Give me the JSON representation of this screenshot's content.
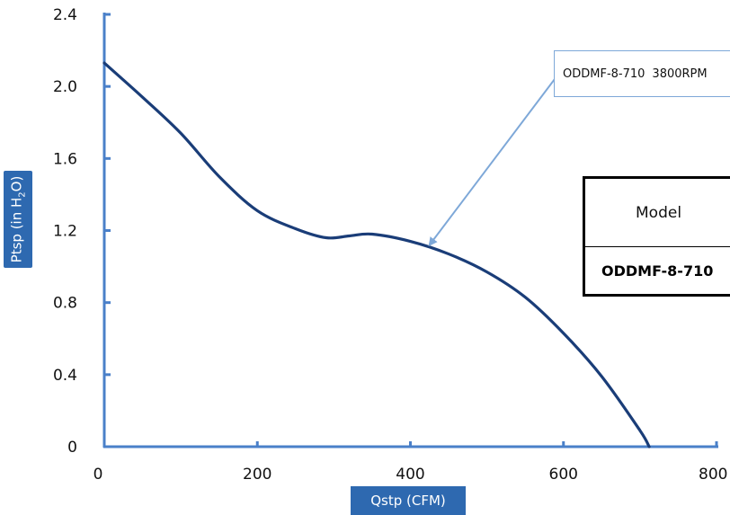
{
  "chart_data": {
    "type": "line",
    "title": "",
    "xlabel": "Qstp (CFM)",
    "ylabel_prefix": "Ptsp (in H",
    "ylabel_sub": "2",
    "ylabel_suffix": "O)",
    "xlim": [
      0,
      800
    ],
    "ylim": [
      0,
      2.4
    ],
    "xticks": [
      0,
      200,
      400,
      600,
      800
    ],
    "yticks": [
      "0",
      "0.4",
      "0.8",
      "1.2",
      "1.6",
      "2.0",
      "2.4"
    ],
    "grid": false,
    "series": [
      {
        "x": [
          0,
          50,
          100,
          150,
          200,
          250,
          290,
          320,
          350,
          400,
          450,
          500,
          550,
          600,
          650,
          700,
          712
        ],
        "y": [
          2.13,
          1.94,
          1.74,
          1.5,
          1.31,
          1.21,
          1.16,
          1.17,
          1.18,
          1.14,
          1.07,
          0.97,
          0.83,
          0.63,
          0.39,
          0.09,
          0.0
        ]
      }
    ],
    "annotations": [
      {
        "model_label": "ODDMF-8-710",
        "speed_label": "3800RPM",
        "points_to": {
          "x": 425,
          "y": 1.12
        }
      }
    ]
  },
  "model_table": {
    "header": "Model",
    "value": "ODDMF-8-710"
  },
  "colors": {
    "axis": "#4a80c9",
    "curve": "#1a3d78",
    "label_box": "#2e69b0",
    "arrow": "#7ea8d8"
  }
}
